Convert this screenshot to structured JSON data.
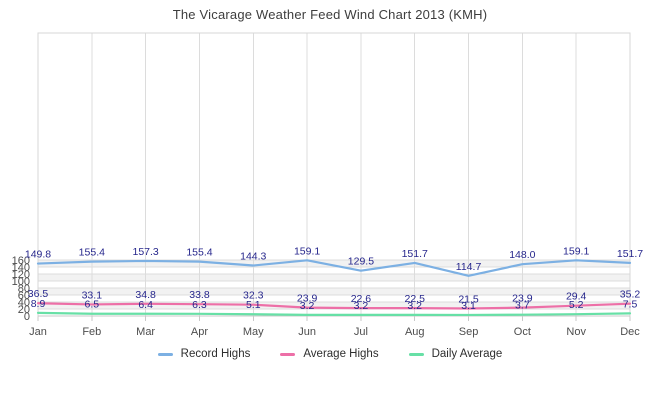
{
  "chart_data": {
    "type": "line",
    "title": "The Vicarage Weather Feed Wind Chart 2013 (KMH)",
    "categories": [
      "Jan",
      "Feb",
      "Mar",
      "Apr",
      "May",
      "Jun",
      "Jul",
      "Aug",
      "Sep",
      "Oct",
      "Nov",
      "Dec"
    ],
    "series": [
      {
        "name": "Record Highs",
        "color": "#7cb0e3",
        "values": [
          149.8,
          155.4,
          157.3,
          155.4,
          144.3,
          159.1,
          129.5,
          151.7,
          114.7,
          148.0,
          159.1,
          151.7
        ]
      },
      {
        "name": "Average Highs",
        "color": "#ed6fa7",
        "values": [
          36.5,
          33.1,
          34.8,
          33.8,
          32.3,
          23.9,
          22.6,
          22.5,
          21.5,
          23.9,
          29.4,
          35.2
        ]
      },
      {
        "name": "Daily Average",
        "color": "#67e0a6",
        "values": [
          8.9,
          6.5,
          6.4,
          6.3,
          5.1,
          3.2,
          3.2,
          3.2,
          3.1,
          3.7,
          5.2,
          7.5
        ]
      }
    ],
    "xlabel": "",
    "ylabel": "",
    "ylim": [
      0,
      160
    ],
    "y_tick_step": 20,
    "y_tick_labels": [
      "0",
      "20",
      "40",
      "60",
      "80",
      "100",
      "120",
      "140",
      "160"
    ],
    "grid": true,
    "data_labels": true,
    "legend_position": "bottom",
    "colors": {
      "data_label": "#26268c",
      "axis_text": "#4d4d4d",
      "grid_line": "#dcdcdc",
      "plot_border": "#d7d7d7",
      "axis_line": "#c9c9c9",
      "band_fill": "#f2f2f2",
      "background": "#ffffff",
      "title_text": "#3d3d3d",
      "legend_text": "#2e2e2e"
    }
  }
}
